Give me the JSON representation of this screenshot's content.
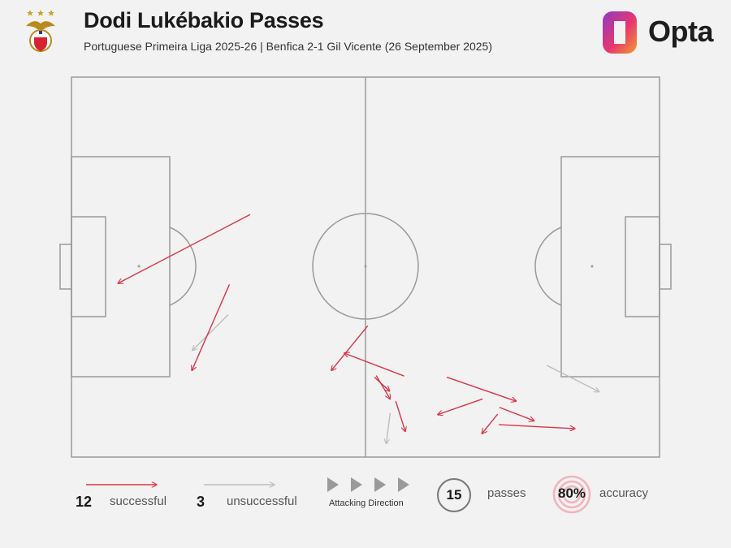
{
  "header": {
    "title": "Dodi Lukébakio Passes",
    "subtitle": "Portuguese Primeira Liga 2025-26 | Benfica 2-1 Gil Vicente (26 September 2025)",
    "brand": "Opta"
  },
  "colors": {
    "successful": "#d93545",
    "unsuccessful": "#bdbdbd",
    "pitch_lines": "#9a9a9a",
    "background": "#f2f2f2"
  },
  "legend": {
    "successful_count": "12",
    "successful_label": "successful",
    "unsuccessful_count": "3",
    "unsuccessful_label": "unsuccessful",
    "attacking_direction_label": "Attacking Direction",
    "passes_count": "15",
    "passes_label": "passes",
    "accuracy_value": "80%",
    "accuracy_label": "accuracy"
  },
  "chart_data": {
    "type": "scatter",
    "title": "Dodi Lukébakio Passes",
    "pitch": {
      "length": 105,
      "width": 68,
      "attacking_direction": "left-to-right"
    },
    "passes": [
      {
        "start": [
          31.9,
          24.6
        ],
        "end": [
          8.3,
          36.9
        ],
        "outcome": "successful"
      },
      {
        "start": [
          28.2,
          37.1
        ],
        "end": [
          21.5,
          52.5
        ],
        "outcome": "successful"
      },
      {
        "start": [
          52.9,
          44.5
        ],
        "end": [
          46.4,
          52.5
        ],
        "outcome": "successful"
      },
      {
        "start": [
          59.4,
          53.5
        ],
        "end": [
          48.7,
          49.4
        ],
        "outcome": "successful"
      },
      {
        "start": [
          54.4,
          53.4
        ],
        "end": [
          56.9,
          57.6
        ],
        "outcome": "successful"
      },
      {
        "start": [
          57.9,
          58.0
        ],
        "end": [
          59.6,
          63.4
        ],
        "outcome": "successful"
      },
      {
        "start": [
          54.1,
          53.7
        ],
        "end": [
          56.8,
          56.2
        ],
        "outcome": "successful"
      },
      {
        "start": [
          67.0,
          53.7
        ],
        "end": [
          79.4,
          58.0
        ],
        "outcome": "successful"
      },
      {
        "start": [
          76.1,
          60.3
        ],
        "end": [
          73.3,
          63.8
        ],
        "outcome": "successful"
      },
      {
        "start": [
          73.4,
          57.6
        ],
        "end": [
          65.4,
          60.4
        ],
        "outcome": "successful"
      },
      {
        "start": [
          76.4,
          59.1
        ],
        "end": [
          82.6,
          61.5
        ],
        "outcome": "successful"
      },
      {
        "start": [
          76.3,
          62.2
        ],
        "end": [
          89.9,
          62.9
        ],
        "outcome": "successful"
      },
      {
        "start": [
          28.0,
          42.5
        ],
        "end": [
          21.6,
          48.9
        ],
        "outcome": "unsuccessful"
      },
      {
        "start": [
          56.9,
          60.1
        ],
        "end": [
          56.2,
          65.6
        ],
        "outcome": "unsuccessful"
      },
      {
        "start": [
          84.9,
          51.6
        ],
        "end": [
          94.2,
          56.3
        ],
        "outcome": "unsuccessful"
      }
    ],
    "successful": 12,
    "unsuccessful": 3,
    "total": 15,
    "accuracy_pct": 80
  }
}
